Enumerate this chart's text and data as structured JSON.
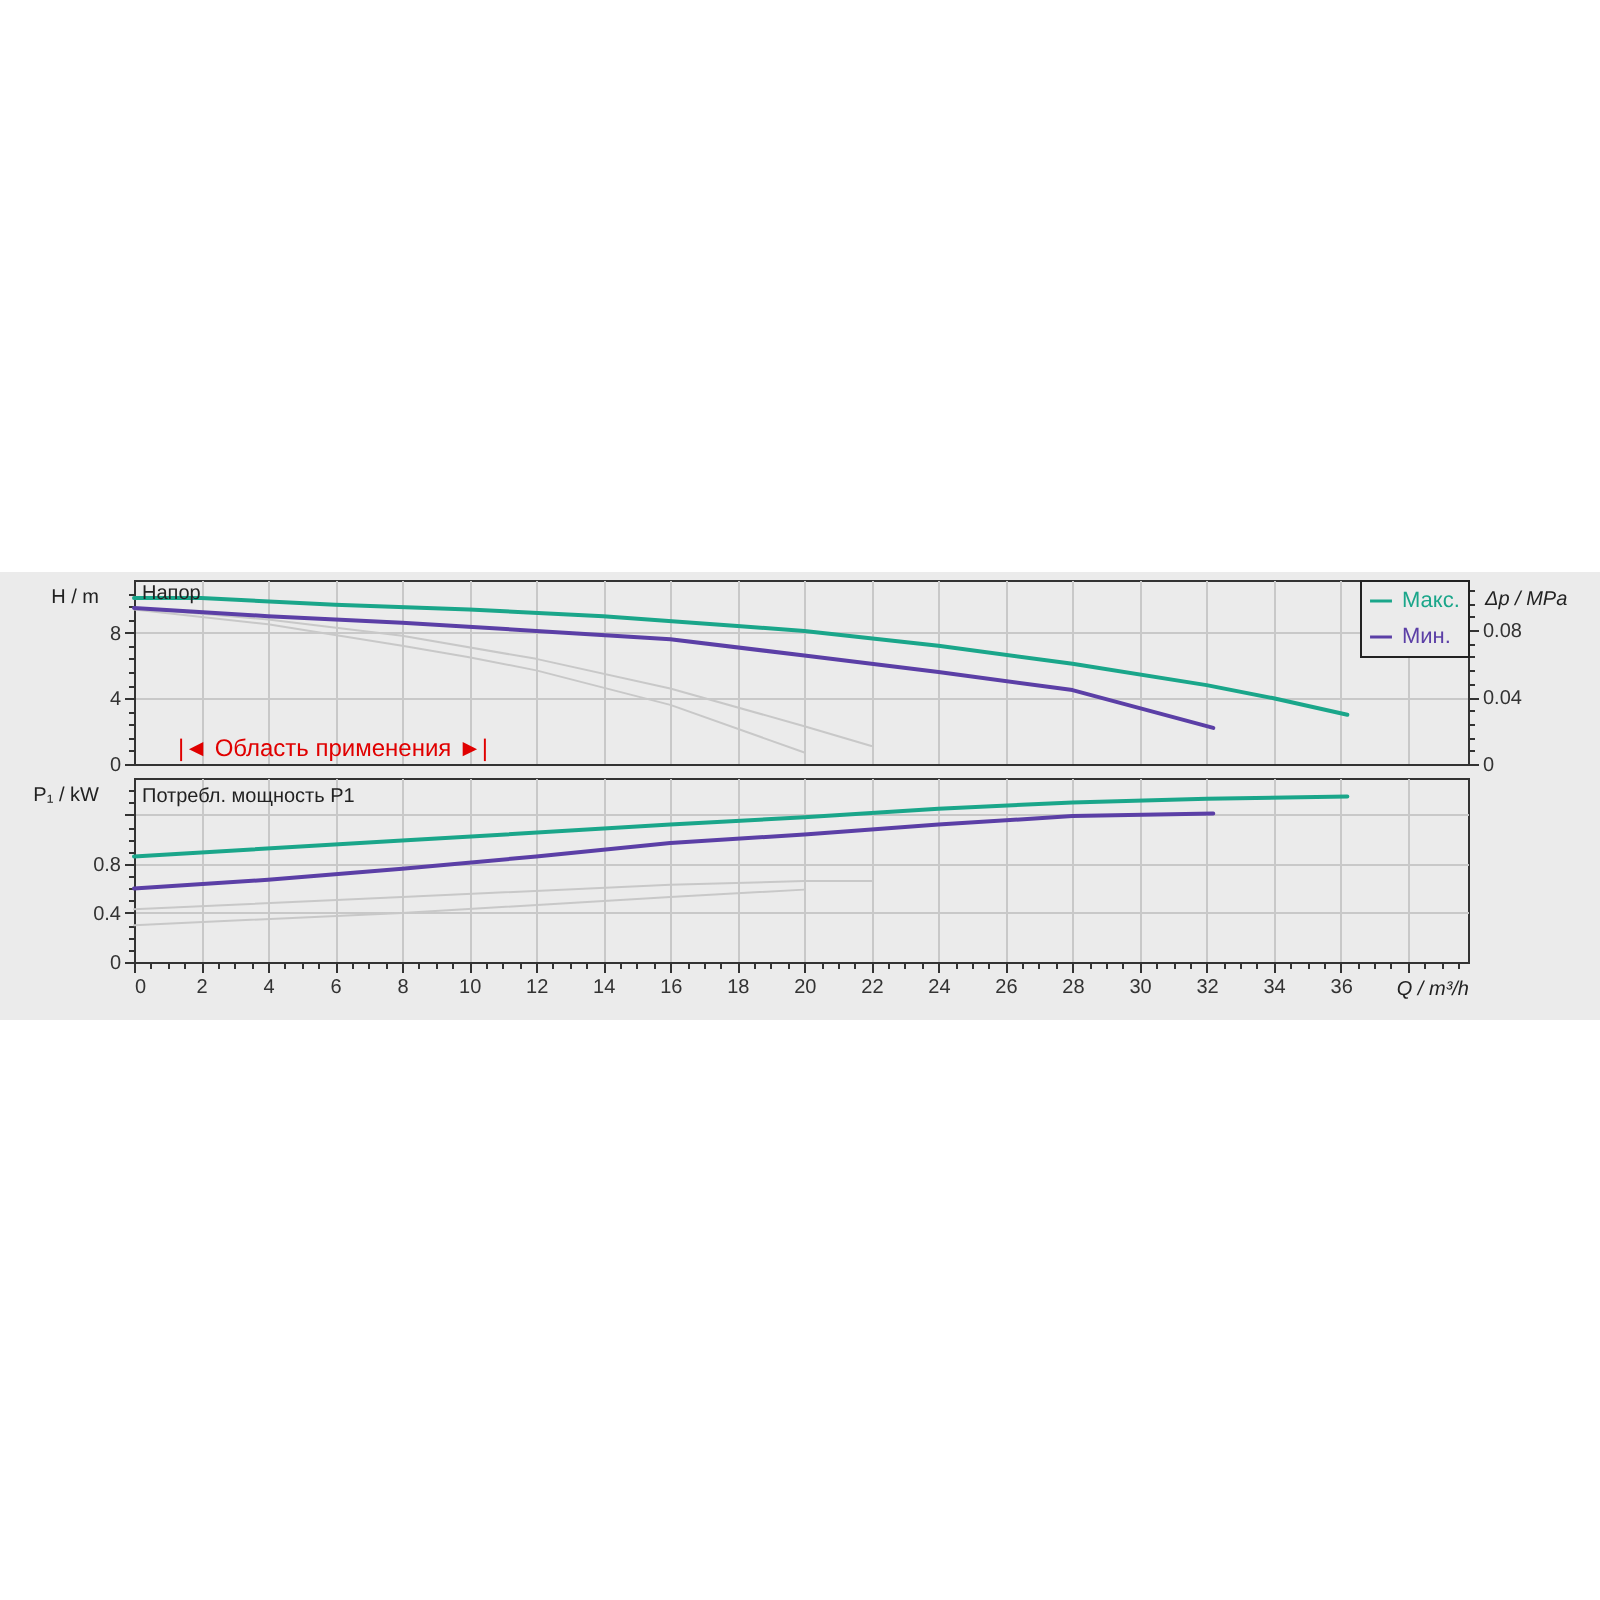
{
  "chart_data": [
    {
      "type": "line",
      "title": "Напор",
      "ylabel": "H / m",
      "y2label": "Δp / MPa",
      "xlim": [
        0,
        39.8
      ],
      "ylim": [
        0,
        11.2
      ],
      "y2lim": [
        0,
        0.11
      ],
      "grid": true,
      "legend": "top right",
      "tick_labels": "y",
      "annotations": [
        "|◄ Область применения ►|"
      ],
      "xticks": [
        {
          "value": 0,
          "label": null
        },
        {
          "value": 2,
          "label": null
        },
        {
          "value": 4,
          "label": null
        },
        {
          "value": 6,
          "label": null
        },
        {
          "value": 8,
          "label": null
        },
        {
          "value": 10,
          "label": null
        },
        {
          "value": 12,
          "label": null
        },
        {
          "value": 14,
          "label": null
        },
        {
          "value": 16,
          "label": null
        },
        {
          "value": 18,
          "label": null
        },
        {
          "value": 20,
          "label": null
        },
        {
          "value": 22,
          "label": null
        },
        {
          "value": 24,
          "label": null
        },
        {
          "value": 26,
          "label": null
        },
        {
          "value": 28,
          "label": null
        },
        {
          "value": 30,
          "label": null
        },
        {
          "value": 32,
          "label": null
        },
        {
          "value": 34,
          "label": null
        },
        {
          "value": 36,
          "label": null
        },
        {
          "value": 38,
          "label": null
        }
      ],
      "yticks": [
        0,
        {
          "value": 0.8,
          "label": null
        },
        {
          "value": 1.6,
          "label": null
        },
        {
          "value": 2.4,
          "label": null
        },
        {
          "value": 3.2,
          "label": null
        },
        4,
        {
          "value": 4.8,
          "label": null
        },
        {
          "value": 5.6,
          "label": null
        },
        {
          "value": 6.4,
          "label": null
        },
        {
          "value": 7.2,
          "label": null
        },
        8,
        {
          "value": 8.8,
          "label": null
        },
        {
          "value": 9.6,
          "label": null
        },
        {
          "value": 10.4,
          "label": null
        }
      ],
      "y2ticks": [
        0,
        {
          "value": 0.008,
          "label": null
        },
        {
          "value": 0.016,
          "label": null
        },
        {
          "value": 0.024,
          "label": null
        },
        {
          "value": 0.032,
          "label": null
        },
        0.04,
        {
          "value": 0.048,
          "label": null
        },
        {
          "value": 0.056,
          "label": null
        },
        {
          "value": 0.064,
          "label": null
        },
        {
          "value": 0.072,
          "label": null
        },
        0.08,
        {
          "value": 0.088,
          "label": null
        },
        {
          "value": 0.096,
          "label": null
        },
        {
          "value": 0.104,
          "label": null
        }
      ],
      "series": [
        {
          "color": "#c8c8c8",
          "x": [
            0,
            4,
            8,
            10,
            12,
            16,
            20
          ],
          "values": [
            9.4,
            8.5,
            7.2,
            6.5,
            5.7,
            3.6,
            0.7
          ]
        },
        {
          "color": "#c8c8c8",
          "x": [
            0,
            4,
            8,
            12,
            16,
            20,
            22
          ],
          "values": [
            9.5,
            8.8,
            7.8,
            6.4,
            4.6,
            2.3,
            1.1
          ]
        },
        {
          "name": "Макс.",
          "color": "#1aa68a",
          "x": [
            0,
            2,
            6,
            10,
            14,
            18,
            20,
            24,
            28,
            32,
            34,
            36.2
          ],
          "values": [
            10.1,
            10.1,
            9.7,
            9.4,
            9.0,
            8.4,
            8.1,
            7.2,
            6.1,
            4.8,
            4.0,
            3.0
          ]
        },
        {
          "name": "Мин.",
          "color": "#5b3fa6",
          "x": [
            0,
            4,
            8,
            12,
            16,
            20,
            24,
            28,
            32.2
          ],
          "values": [
            9.5,
            9.0,
            8.6,
            8.1,
            7.6,
            6.6,
            5.6,
            4.5,
            2.2
          ]
        }
      ]
    },
    {
      "type": "line",
      "title": "Потребл. мощность P1",
      "ylabel": "P₁ / kW",
      "xlabel": "Q / m³/h",
      "xlim": [
        0,
        39.8
      ],
      "ylim": [
        0,
        1.5
      ],
      "grid": true,
      "xticks": [
        0,
        {
          "value": 0.5,
          "label": null
        },
        {
          "value": 1,
          "label": null
        },
        {
          "value": 1.5,
          "label": null
        },
        2,
        {
          "value": 2.5,
          "label": null
        },
        {
          "value": 3,
          "label": null
        },
        {
          "value": 3.5,
          "label": null
        },
        4,
        {
          "value": 4.5,
          "label": null
        },
        {
          "value": 5,
          "label": null
        },
        {
          "value": 5.5,
          "label": null
        },
        6,
        {
          "value": 6.5,
          "label": null
        },
        {
          "value": 7,
          "label": null
        },
        {
          "value": 7.5,
          "label": null
        },
        8,
        {
          "value": 8.5,
          "label": null
        },
        {
          "value": 9,
          "label": null
        },
        {
          "value": 9.5,
          "label": null
        },
        10,
        {
          "value": 10.5,
          "label": null
        },
        {
          "value": 11,
          "label": null
        },
        {
          "value": 11.5,
          "label": null
        },
        12,
        {
          "value": 12.5,
          "label": null
        },
        {
          "value": 13,
          "label": null
        },
        {
          "value": 13.5,
          "label": null
        },
        14,
        {
          "value": 14.5,
          "label": null
        },
        {
          "value": 15,
          "label": null
        },
        {
          "value": 15.5,
          "label": null
        },
        16,
        {
          "value": 16.5,
          "label": null
        },
        {
          "value": 17,
          "label": null
        },
        {
          "value": 17.5,
          "label": null
        },
        18,
        {
          "value": 18.5,
          "label": null
        },
        {
          "value": 19,
          "label": null
        },
        {
          "value": 19.5,
          "label": null
        },
        20,
        {
          "value": 20.5,
          "label": null
        },
        {
          "value": 21,
          "label": null
        },
        {
          "value": 21.5,
          "label": null
        },
        22,
        {
          "value": 22.5,
          "label": null
        },
        {
          "value": 23,
          "label": null
        },
        {
          "value": 23.5,
          "label": null
        },
        24,
        {
          "value": 24.5,
          "label": null
        },
        {
          "value": 25,
          "label": null
        },
        {
          "value": 25.5,
          "label": null
        },
        26,
        {
          "value": 26.5,
          "label": null
        },
        {
          "value": 27,
          "label": null
        },
        {
          "value": 27.5,
          "label": null
        },
        28,
        {
          "value": 28.5,
          "label": null
        },
        {
          "value": 29,
          "label": null
        },
        {
          "value": 29.5,
          "label": null
        },
        30,
        {
          "value": 30.5,
          "label": null
        },
        {
          "value": 31,
          "label": null
        },
        {
          "value": 31.5,
          "label": null
        },
        32,
        {
          "value": 32.5,
          "label": null
        },
        {
          "value": 33,
          "label": null
        },
        {
          "value": 33.5,
          "label": null
        },
        34,
        {
          "value": 34.5,
          "label": null
        },
        {
          "value": 35,
          "label": null
        },
        {
          "value": 35.5,
          "label": null
        },
        36,
        {
          "value": 36.5,
          "label": null
        },
        {
          "value": 37,
          "label": null
        },
        {
          "value": 37.5,
          "label": null
        },
        {
          "value": 38,
          "label": null
        },
        {
          "value": 38.5,
          "label": null
        },
        {
          "value": 39,
          "label": null
        },
        {
          "value": 39.5,
          "label": null
        }
      ],
      "yticks": [
        0,
        {
          "value": 0.1,
          "label": null
        },
        {
          "value": 0.2,
          "label": null
        },
        {
          "value": 0.3,
          "label": null
        },
        0.4,
        {
          "value": 0.5,
          "label": null
        },
        {
          "value": 0.6,
          "label": null
        },
        {
          "value": 0.7,
          "label": null
        },
        0.8,
        {
          "value": 0.9,
          "label": null
        },
        {
          "value": 1.0,
          "label": null
        },
        {
          "value": 1.1,
          "label": null
        },
        {
          "value": 1.2,
          "label": null
        },
        {
          "value": 1.3,
          "label": null
        },
        {
          "value": 1.4,
          "label": null
        }
      ],
      "series": [
        {
          "color": "#c8c8c8",
          "x": [
            0,
            8,
            16,
            20
          ],
          "values": [
            0.3,
            0.4,
            0.53,
            0.59
          ]
        },
        {
          "color": "#c8c8c8",
          "x": [
            0,
            8,
            16,
            20,
            22
          ],
          "values": [
            0.43,
            0.53,
            0.63,
            0.66,
            0.66
          ]
        },
        {
          "color": "#1aa68a",
          "x": [
            0,
            8,
            16,
            20,
            24,
            28,
            32,
            36.2
          ],
          "values": [
            0.86,
            0.99,
            1.12,
            1.18,
            1.25,
            1.3,
            1.33,
            1.35
          ]
        },
        {
          "color": "#5b3fa6",
          "x": [
            0,
            4,
            8,
            12,
            16,
            20,
            24,
            28,
            32.2
          ],
          "values": [
            0.6,
            0.67,
            0.76,
            0.86,
            0.97,
            1.04,
            1.12,
            1.19,
            1.21
          ]
        }
      ]
    }
  ]
}
